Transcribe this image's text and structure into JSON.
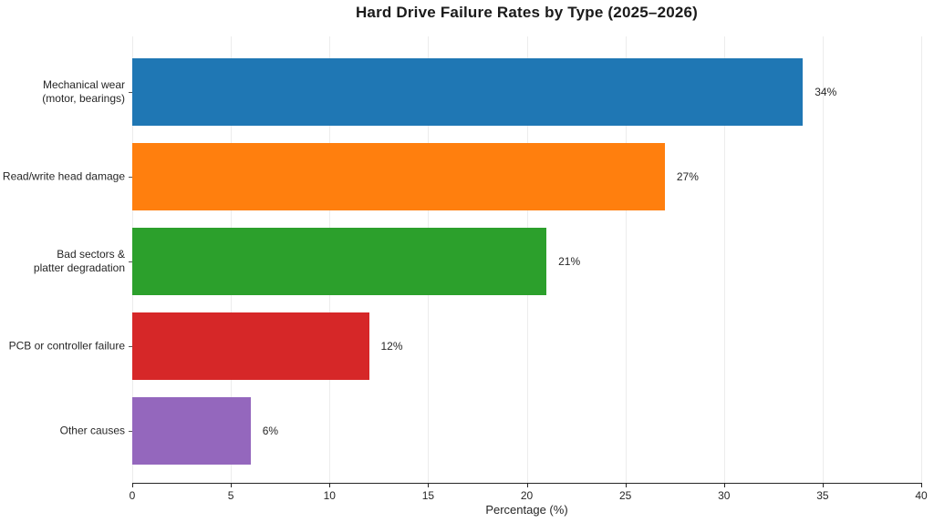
{
  "title": "Hard Drive Failure Rates by Type (2025–2026)",
  "chart_data": {
    "type": "bar",
    "orientation": "horizontal",
    "title": "Hard Drive Failure Rates by Type (2025–2026)",
    "categories": [
      "Mechanical wear\n(motor, bearings)",
      "Read/write head damage",
      "Bad sectors &\nplatter degradation",
      "PCB or controller failure",
      "Other causes"
    ],
    "values": [
      34,
      27,
      21,
      12,
      6
    ],
    "value_labels": [
      "34%",
      "27%",
      "21%",
      "12%",
      "6%"
    ],
    "bar_colors": [
      "#1f77b4",
      "#ff7f0e",
      "#2ca02c",
      "#d62728",
      "#9467bd"
    ],
    "xlabel": "Percentage (%)",
    "ylabel": "",
    "xlim": [
      0,
      40
    ],
    "x_ticks": [
      "0",
      "5",
      "10",
      "15",
      "20",
      "25",
      "30",
      "35",
      "40"
    ],
    "grid": "vertical-faint",
    "legend": "none",
    "background_color": "#ffffff",
    "text_color": "#262626"
  }
}
